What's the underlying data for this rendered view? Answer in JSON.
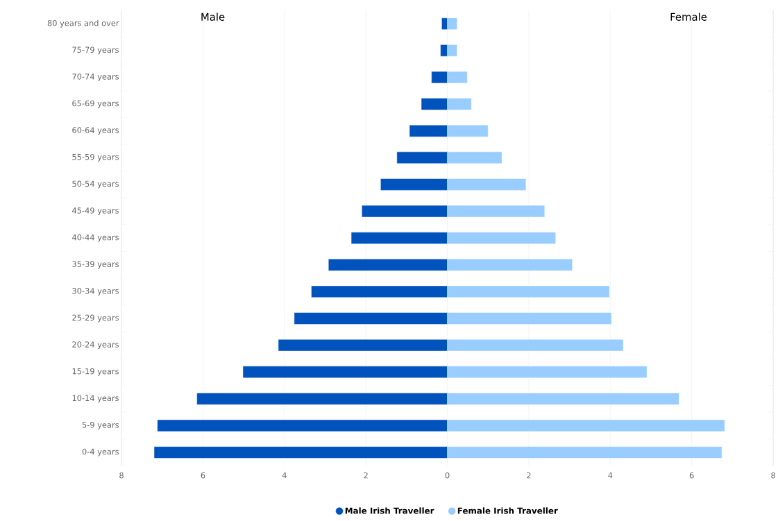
{
  "chart_data": {
    "type": "bar",
    "orientation": "horizontal",
    "stacked": true,
    "categories": [
      "80 years and over",
      "75-79 years",
      "70-74 years",
      "65-69 years",
      "60-64 years",
      "55-59 years",
      "50-54 years",
      "45-49 years",
      "40-44 years",
      "35-39 years",
      "30-34 years",
      "25-29 years",
      "20-24 years",
      "15-19 years",
      "10-14 years",
      "5-9 years",
      "0-4 years"
    ],
    "series": [
      {
        "name": "Male Irish Traveller",
        "color": "#0052bd",
        "values": [
          -0.14,
          -0.17,
          -0.39,
          -0.64,
          -0.93,
          -1.24,
          -1.64,
          -2.1,
          -2.36,
          -2.92,
          -3.34,
          -3.76,
          -4.15,
          -5.02,
          -6.15,
          -7.12,
          -7.2
        ]
      },
      {
        "name": "Female Irish Traveller",
        "color": "#99ccff",
        "values": [
          0.24,
          0.24,
          0.49,
          0.59,
          1.0,
          1.34,
          1.93,
          2.39,
          2.66,
          3.07,
          3.98,
          4.03,
          4.32,
          4.9,
          5.69,
          6.81,
          6.74
        ]
      }
    ],
    "xlim": [
      -8,
      8
    ],
    "xticks": [
      {
        "value": -8,
        "label": "8"
      },
      {
        "value": -6,
        "label": "6"
      },
      {
        "value": -4,
        "label": "4"
      },
      {
        "value": -2,
        "label": "2"
      },
      0,
      2,
      4,
      6,
      8
    ],
    "grid": "x",
    "legend": "bottom",
    "annotations": [
      "Male",
      "Female"
    ]
  }
}
